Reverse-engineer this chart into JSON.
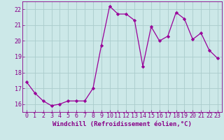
{
  "x": [
    0,
    1,
    2,
    3,
    4,
    5,
    6,
    7,
    8,
    9,
    10,
    11,
    12,
    13,
    14,
    15,
    16,
    17,
    18,
    19,
    20,
    21,
    22,
    23
  ],
  "y": [
    17.4,
    16.7,
    16.2,
    15.9,
    16.0,
    16.2,
    16.2,
    16.2,
    17.0,
    19.7,
    22.2,
    21.7,
    21.7,
    21.3,
    18.4,
    20.9,
    20.0,
    20.3,
    21.8,
    21.4,
    20.1,
    20.5,
    19.4,
    18.9
  ],
  "line_color": "#990099",
  "marker": "D",
  "marker_size": 2.2,
  "bg_color": "#cce8e8",
  "grid_color": "#aacccc",
  "xlabel": "Windchill (Refroidissement éolien,°C)",
  "ylabel": "",
  "ylim": [
    15.5,
    22.5
  ],
  "xlim": [
    -0.5,
    23.5
  ],
  "yticks": [
    16,
    17,
    18,
    19,
    20,
    21,
    22
  ],
  "xticks": [
    0,
    1,
    2,
    3,
    4,
    5,
    6,
    7,
    8,
    9,
    10,
    11,
    12,
    13,
    14,
    15,
    16,
    17,
    18,
    19,
    20,
    21,
    22,
    23
  ],
  "tick_color": "#880088",
  "label_color": "#880088",
  "font_size": 6.0,
  "xlabel_fontsize": 6.5,
  "linewidth": 0.9
}
